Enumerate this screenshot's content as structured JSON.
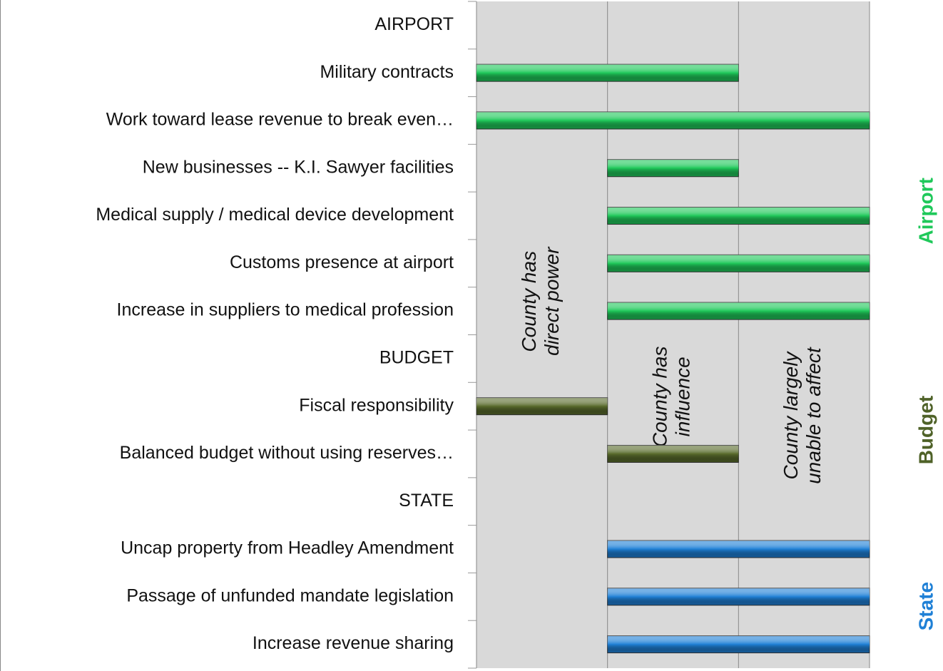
{
  "chart_data": {
    "type": "range-bar",
    "categories": [
      "AIRPORT",
      "Military contracts",
      "Work toward lease revenue to break even…",
      "New businesses -- K.I. Sawyer facilities",
      "Medical supply / medical device development",
      "Customs presence at airport",
      "Increase in suppliers to medical profession",
      "BUDGET",
      "Fiscal responsibility",
      "Balanced budget without using reserves…",
      "STATE",
      "Uncap property from Headley Amendment",
      "Passage of unfunded mandate legislation",
      "Increase revenue sharing"
    ],
    "start": [
      null,
      0,
      0,
      1,
      1,
      1,
      1,
      null,
      0,
      1,
      null,
      1,
      1,
      1
    ],
    "end": [
      null,
      2,
      3,
      2,
      3,
      3,
      3,
      null,
      1,
      2,
      null,
      3,
      3,
      3
    ],
    "colors": [
      null,
      "#1fc85a",
      "#1fc85a",
      "#1fc85a",
      "#1fc85a",
      "#1fc85a",
      "#1fc85a",
      null,
      "#596b2c",
      "#596b2c",
      null,
      "#1f80d6",
      "#1f80d6",
      "#1f80d6"
    ],
    "xlim": [
      0,
      3
    ],
    "xticks": [
      0,
      1,
      2,
      3
    ],
    "grid": true,
    "annotations": [
      {
        "lines": [
          "County has",
          "direct power"
        ],
        "x": 0.5,
        "row": 5.8
      },
      {
        "lines": [
          "County has",
          "influence"
        ],
        "x": 1.5,
        "row": 7.8
      },
      {
        "lines": [
          "County largely",
          "unable to affect"
        ],
        "x": 2.5,
        "row": 8.2
      }
    ],
    "groups": [
      {
        "name": "Airport",
        "color": "#1fc85a",
        "row": 3.9
      },
      {
        "name": "Budget",
        "color": "#4f6228",
        "row": 8.5
      },
      {
        "name": "State",
        "color": "#1f80d6",
        "row": 12.2
      }
    ]
  }
}
